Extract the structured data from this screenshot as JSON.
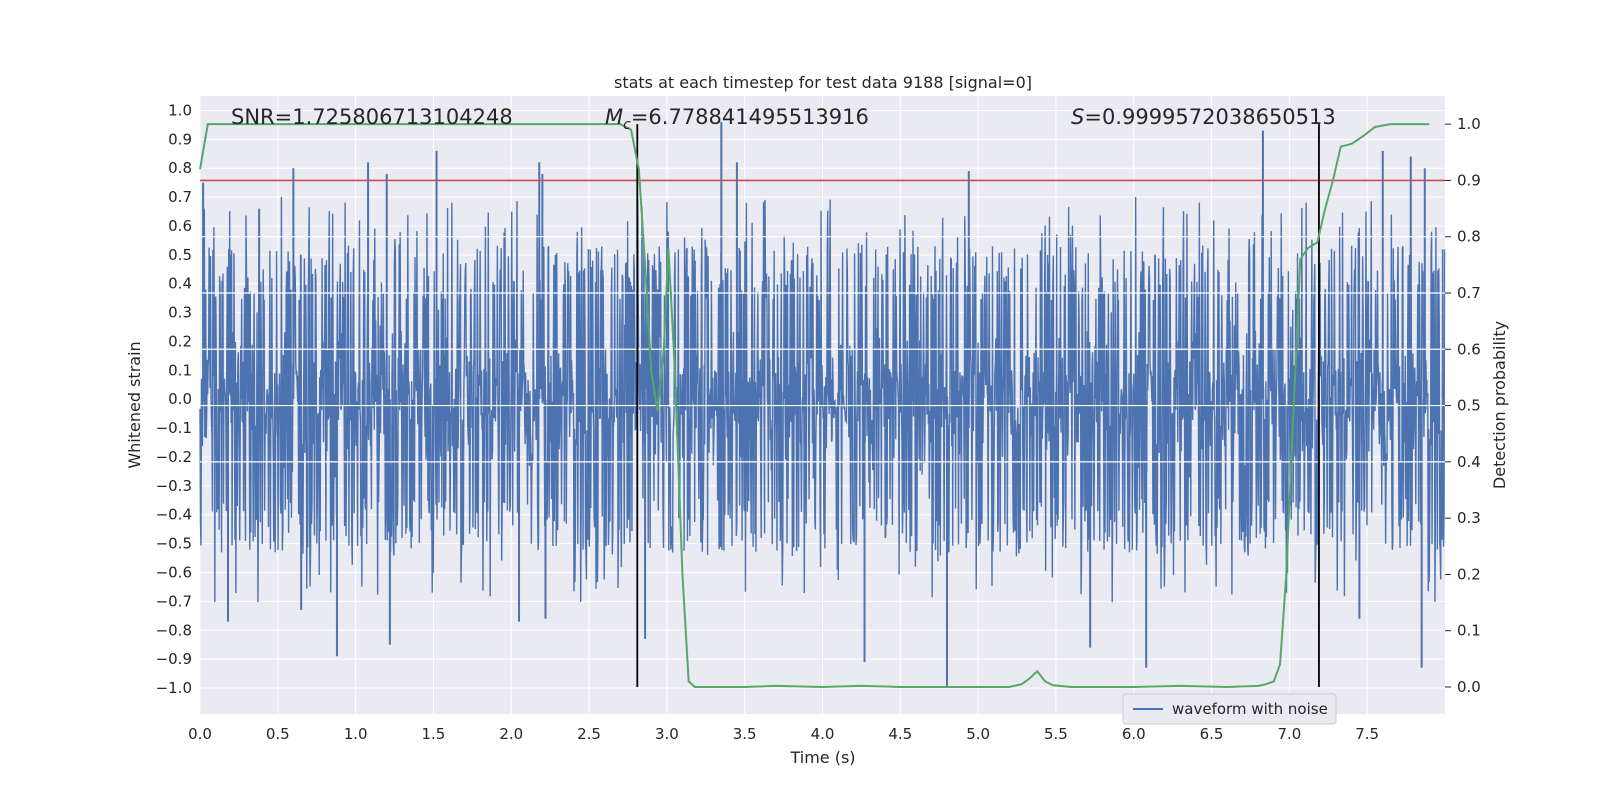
{
  "chart_data": {
    "type": "line",
    "title": "stats at each timestep for test data 9188 [signal=0]",
    "xlabel": "Time (s)",
    "ylabel_left": "Whitened strain",
    "ylabel_right": "Detection probability",
    "xlim": [
      0.0,
      8.0
    ],
    "ylim_left": [
      -1.09,
      1.05
    ],
    "ylim_right": [
      -0.048,
      1.05
    ],
    "x_ticks": [
      "0.0",
      "0.5",
      "1.0",
      "1.5",
      "2.0",
      "2.5",
      "3.0",
      "3.5",
      "4.0",
      "4.5",
      "5.0",
      "5.5",
      "6.0",
      "6.5",
      "7.0",
      "7.5"
    ],
    "y_left_ticks": [
      "1.0",
      "0.9",
      "0.8",
      "0.7",
      "0.6",
      "0.5",
      "0.4",
      "0.3",
      "0.2",
      "0.1",
      "0.0",
      "-0.1",
      "-0.2",
      "-0.3",
      "-0.4",
      "-0.5",
      "-0.6",
      "-0.7",
      "-0.8",
      "-0.9",
      "-1.0"
    ],
    "y_right_ticks": [
      "1.0",
      "0.9",
      "0.8",
      "0.7",
      "0.6",
      "0.5",
      "0.4",
      "0.3",
      "0.2",
      "0.1",
      "0.0"
    ],
    "grid": true,
    "legend_position": "lower-right",
    "annotations": {
      "snr": "SNR=1.725806713104248",
      "mc_symbol": "M",
      "mc_sub": "c",
      "mc_value": "=6.778841495513916",
      "s_symbol": "S",
      "s_value": "=0.9999572038650513"
    },
    "series": [
      {
        "name": "waveform with noise",
        "axis": "left",
        "color": "#4c72b0",
        "style": "noise",
        "typical_amplitude": 0.38,
        "spikes": [
          {
            "t": 0.02,
            "v": 0.75
          },
          {
            "t": 0.38,
            "v": 0.66
          },
          {
            "t": 0.6,
            "v": 0.8
          },
          {
            "t": 1.08,
            "v": 0.82
          },
          {
            "t": 1.2,
            "v": 0.78
          },
          {
            "t": 1.52,
            "v": 0.86
          },
          {
            "t": 2.18,
            "v": 0.82
          },
          {
            "t": 2.2,
            "v": 0.78
          },
          {
            "t": 3.35,
            "v": 0.96
          },
          {
            "t": 3.45,
            "v": 0.82
          },
          {
            "t": 4.94,
            "v": 0.79
          },
          {
            "t": 6.83,
            "v": 0.93
          },
          {
            "t": 7.6,
            "v": 0.86
          },
          {
            "t": 7.78,
            "v": 0.84
          },
          {
            "t": 7.87,
            "v": 0.8
          },
          {
            "t": 0.18,
            "v": -0.77
          },
          {
            "t": 0.65,
            "v": -0.73
          },
          {
            "t": 0.88,
            "v": -0.89
          },
          {
            "t": 1.22,
            "v": -0.85
          },
          {
            "t": 2.05,
            "v": -0.77
          },
          {
            "t": 2.22,
            "v": -0.76
          },
          {
            "t": 2.86,
            "v": -0.83
          },
          {
            "t": 4.27,
            "v": -0.91
          },
          {
            "t": 4.8,
            "v": -1.0
          },
          {
            "t": 5.72,
            "v": -0.86
          },
          {
            "t": 6.08,
            "v": -0.93
          },
          {
            "t": 7.45,
            "v": -0.76
          },
          {
            "t": 7.85,
            "v": -0.93
          }
        ]
      },
      {
        "name": "detection probability",
        "axis": "right",
        "color": "#55a868",
        "x": [
          0.0,
          0.05,
          0.1,
          0.5,
          1.0,
          1.5,
          2.0,
          2.5,
          2.7,
          2.77,
          2.82,
          2.86,
          2.9,
          2.94,
          2.98,
          3.01,
          3.05,
          3.1,
          3.14,
          3.18,
          3.5,
          3.7,
          4.0,
          4.25,
          4.5,
          4.8,
          5.0,
          5.2,
          5.28,
          5.33,
          5.38,
          5.43,
          5.48,
          5.6,
          5.8,
          6.0,
          6.3,
          6.6,
          6.8,
          6.85,
          6.9,
          6.94,
          6.98,
          7.02,
          7.07,
          7.12,
          7.18,
          7.23,
          7.28,
          7.33,
          7.4,
          7.48,
          7.55,
          7.65,
          7.9
        ],
        "y": [
          0.92,
          1.0,
          1.0,
          1.0,
          1.0,
          1.0,
          1.0,
          1.0,
          1.0,
          0.99,
          0.92,
          0.75,
          0.56,
          0.49,
          0.6,
          0.78,
          0.57,
          0.2,
          0.01,
          0.0,
          0.0,
          0.002,
          0.0,
          0.002,
          0.0,
          0.0,
          0.0,
          0.0,
          0.005,
          0.015,
          0.028,
          0.01,
          0.003,
          0.0,
          0.0,
          0.0,
          0.002,
          0.0,
          0.002,
          0.005,
          0.01,
          0.04,
          0.2,
          0.45,
          0.76,
          0.78,
          0.79,
          0.85,
          0.9,
          0.96,
          0.965,
          0.98,
          0.995,
          1.0,
          1.0
        ]
      }
    ],
    "threshold_line": {
      "axis": "right",
      "value": 0.9,
      "color": "#c44e52"
    },
    "vertical_lines": [
      {
        "x": 2.81,
        "color": "#000000"
      },
      {
        "x": 7.19,
        "color": "#000000"
      }
    ],
    "right_axis_gridlines": [
      0.9,
      0.8,
      0.7,
      0.6,
      0.5,
      0.4
    ]
  }
}
